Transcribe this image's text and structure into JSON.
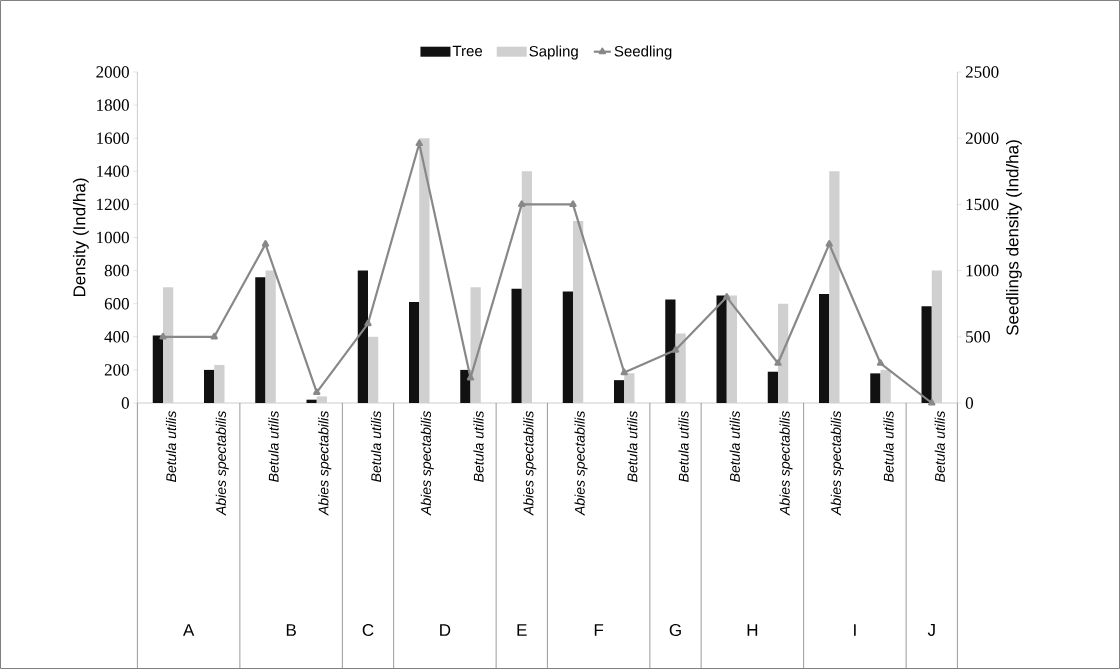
{
  "chart_data": {
    "type": "bar",
    "categories": [
      "Betula utilis",
      "Abies spectabilis",
      "Betula utilis",
      "Abies spectabilis",
      "Betula utilis",
      "Abies spectabilis",
      "Betula utilis",
      "Abies spectabilis",
      "Abies spectabilis",
      "Betula utilis",
      "Betula utilis",
      "Betula utilis",
      "Abies spectabilis",
      "Abies spectabilis",
      "Betula utilis",
      "Betula utilis"
    ],
    "series": [
      {
        "name": "Tree",
        "color": "#111111",
        "values": [
          408,
          200,
          760,
          20,
          800,
          610,
          200,
          690,
          674,
          138,
          625,
          650,
          189,
          658,
          179,
          585
        ]
      },
      {
        "name": "Sapling",
        "color": "#d0d0d0",
        "values": [
          700,
          230,
          800,
          40,
          400,
          1600,
          700,
          1400,
          1100,
          180,
          420,
          650,
          600,
          1400,
          200,
          800
        ]
      },
      {
        "name": "Seedling",
        "type": "line",
        "axis": "y2",
        "color": "#888888",
        "marker": "triangle",
        "values": [
          500,
          500,
          1200,
          80,
          600,
          1960,
          190,
          1500,
          1500,
          230,
          400,
          800,
          300,
          1200,
          300,
          0
        ]
      }
    ],
    "ylabel": "Density (Ind/ha)",
    "y2label": "Seedlings density (Ind/ha)",
    "ylim": [
      0,
      2000
    ],
    "yticks": [
      0,
      200,
      400,
      600,
      800,
      1000,
      1200,
      1400,
      1600,
      1800,
      2000
    ],
    "y2lim": [
      0,
      2500
    ],
    "y2ticks": [
      0,
      500,
      1000,
      1500,
      2000,
      2500
    ],
    "legend": "top",
    "annotations": [
      "A",
      "B",
      "C",
      "D",
      "E",
      "F",
      "G",
      "H",
      "I",
      "J"
    ]
  }
}
